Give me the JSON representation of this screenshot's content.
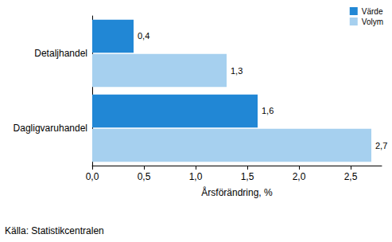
{
  "chart_data": {
    "type": "bar",
    "orientation": "horizontal",
    "categories": [
      "Detaljhandel",
      "Dagligvaruhandel"
    ],
    "series": [
      {
        "name": "Värde",
        "color": "#2187d5",
        "values": [
          0.4,
          1.6
        ],
        "value_labels": [
          "0,4",
          "1,6"
        ]
      },
      {
        "name": "Volym",
        "color": "#a6d0ef",
        "values": [
          1.3,
          2.7
        ],
        "value_labels": [
          "1,3",
          "2,7"
        ]
      }
    ],
    "xlabel": "Årsförändring, %",
    "xlim": [
      0,
      2.8
    ],
    "xticks": [
      {
        "value": 0,
        "label": "0,0"
      },
      {
        "value": 0.5,
        "label": "0,5"
      },
      {
        "value": 1,
        "label": "1,0"
      },
      {
        "value": 1.5,
        "label": "1,5"
      },
      {
        "value": 2,
        "label": "2,0"
      },
      {
        "value": 2.5,
        "label": "2,5"
      }
    ],
    "source": "Källa: Statistikcentralen",
    "legend": "upper right",
    "grid": false,
    "data_labels": true
  }
}
